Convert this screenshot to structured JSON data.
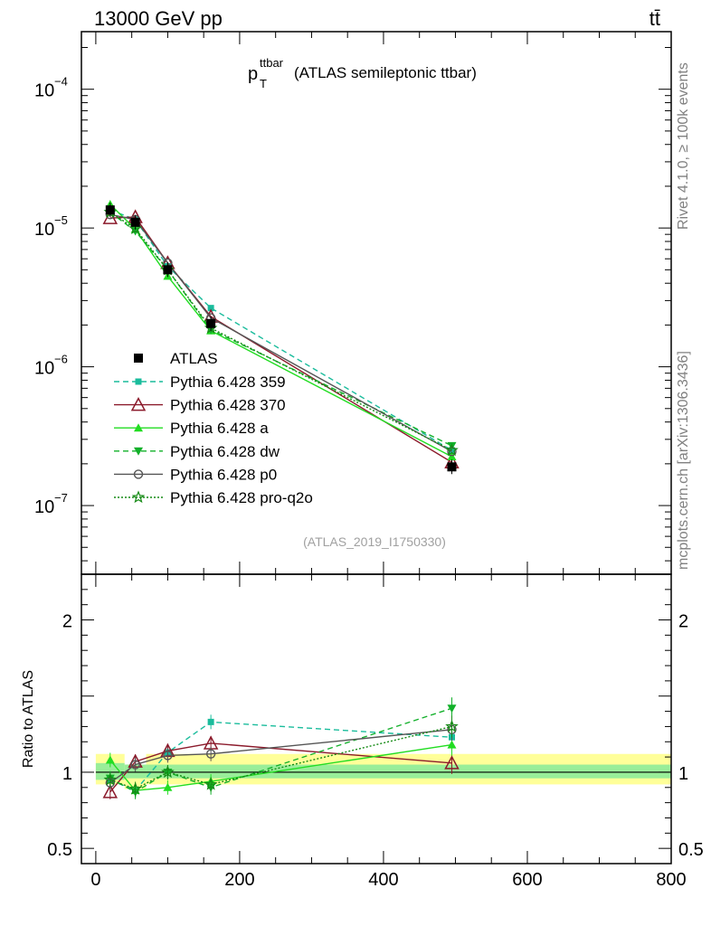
{
  "header": {
    "left": "13000 GeV pp",
    "right": "tt̄"
  },
  "side_labels": {
    "rivet": "Rivet 4.1.0, ≥ 100k events",
    "mcplots": "mcplots.cern.ch [arXiv:1306.3436]"
  },
  "chart_data": [
    {
      "type": "line",
      "title_main": "p",
      "title_sup": "ttbar",
      "title_sub": "T",
      "title_rest": "(ATLAS semileptonic ttbar)",
      "analysis_id": "(ATLAS_2019_I1750330)",
      "yscale": "log",
      "ylim": [
        3.2e-08,
        0.00026
      ],
      "xlim": [
        -20,
        800
      ],
      "y_tick_labels": [
        {
          "value": 0.0001,
          "base": "10",
          "exp": "−4"
        },
        {
          "value": 1e-05,
          "base": "10",
          "exp": "−5"
        },
        {
          "value": 1e-06,
          "base": "10",
          "exp": "−6"
        },
        {
          "value": 1e-07,
          "base": "10",
          "exp": "−7"
        }
      ],
      "x": [
        20,
        55,
        100,
        160,
        495
      ],
      "reference": {
        "name": "ATLAS",
        "values": [
          1.35e-05,
          1.1e-05,
          5e-06,
          2.05e-06,
          1.9e-07
        ]
      },
      "series": [
        {
          "name": "Pythia 6.428 359",
          "color": "#1abc9c",
          "dash": "6,4",
          "marker": "square",
          "values": [
            1.35e-05,
            1.15e-05,
            5.3e-06,
            2.65e-06,
            2.5e-07
          ]
        },
        {
          "name": "Pythia 6.428 370",
          "color": "#8b1a2b",
          "dash": "",
          "marker": "triangle-open",
          "values": [
            1.18e-05,
            1.2e-05,
            5.6e-06,
            2.3e-06,
            2.05e-07
          ]
        },
        {
          "name": "Pythia 6.428 a",
          "color": "#22dd22",
          "dash": "",
          "marker": "triangle",
          "values": [
            1.48e-05,
            9.8e-06,
            4.5e-06,
            1.82e-06,
            2.25e-07
          ]
        },
        {
          "name": "Pythia 6.428 dw",
          "color": "#12b02a",
          "dash": "6,4",
          "marker": "triangle-down",
          "values": [
            1.3e-05,
            9.5e-06,
            5e-06,
            1.85e-06,
            2.7e-07
          ]
        },
        {
          "name": "Pythia 6.428 p0",
          "color": "#555555",
          "dash": "",
          "marker": "circle-open",
          "values": [
            1.25e-05,
            1.15e-05,
            5.6e-06,
            2.25e-06,
            2.45e-07
          ]
        },
        {
          "name": "Pythia 6.428 pro-q2o",
          "color": "#158a15",
          "dash": "2,2",
          "marker": "star-open",
          "values": [
            1.3e-05,
            9.9e-06,
            5e-06,
            1.9e-06,
            2.5e-07
          ]
        }
      ]
    },
    {
      "type": "line",
      "ylabel": "Ratio to ATLAS",
      "ylim": [
        0.4,
        2.3
      ],
      "xlim": [
        -20,
        800
      ],
      "y_tick_labels": [
        {
          "value": 2,
          "label": "2"
        },
        {
          "value": 1,
          "label": "1"
        },
        {
          "value": 0.5,
          "label": "0.5"
        }
      ],
      "x_tick_labels": [
        {
          "value": 0,
          "label": "0"
        },
        {
          "value": 200,
          "label": "200"
        },
        {
          "value": 400,
          "label": "400"
        },
        {
          "value": 600,
          "label": "600"
        },
        {
          "value": 800,
          "label": "800"
        }
      ],
      "x": [
        20,
        55,
        100,
        160,
        495
      ],
      "bands": {
        "stat": [
          {
            "x0": 0,
            "x1": 40,
            "lo": 0.95,
            "hi": 1.06
          },
          {
            "x0": 40,
            "x1": 70,
            "lo": 0.96,
            "hi": 1.05
          },
          {
            "x0": 70,
            "x1": 800,
            "lo": 0.96,
            "hi": 1.05
          }
        ],
        "syst": [
          {
            "x0": 0,
            "x1": 40,
            "lo": 0.92,
            "hi": 1.12
          },
          {
            "x0": 40,
            "x1": 70,
            "lo": 0.89,
            "hi": 1.05
          },
          {
            "x0": 70,
            "x1": 800,
            "lo": 0.92,
            "hi": 1.12
          }
        ]
      },
      "series": [
        {
          "name": "Pythia 6.428 359",
          "values": [
            0.95,
            0.88,
            1.13,
            1.33,
            1.23
          ]
        },
        {
          "name": "Pythia 6.428 370",
          "values": [
            0.87,
            1.07,
            1.14,
            1.19,
            1.06
          ]
        },
        {
          "name": "Pythia 6.428 a",
          "values": [
            1.08,
            0.88,
            0.9,
            0.94,
            1.18
          ]
        },
        {
          "name": "Pythia 6.428 dw",
          "values": [
            0.96,
            0.87,
            1.0,
            0.9,
            1.42
          ]
        },
        {
          "name": "Pythia 6.428 p0",
          "values": [
            0.93,
            1.05,
            1.11,
            1.12,
            1.28
          ]
        },
        {
          "name": "Pythia 6.428 pro-q2o",
          "values": [
            0.95,
            0.89,
            1.0,
            0.92,
            1.3
          ]
        }
      ]
    }
  ]
}
